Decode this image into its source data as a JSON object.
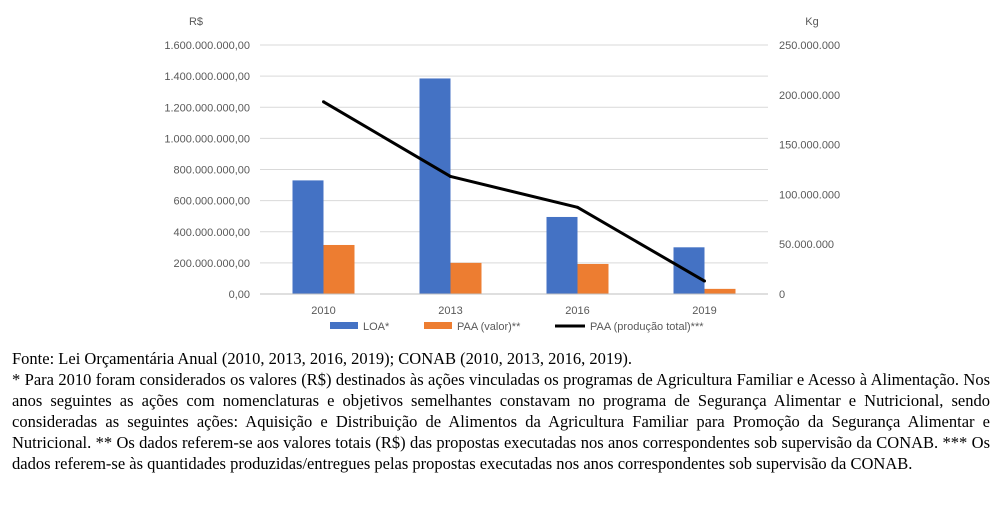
{
  "chart_data": {
    "type": "bar+line",
    "categories": [
      "2010",
      "2013",
      "2016",
      "2019"
    ],
    "y_left": {
      "unit_label": "R$",
      "range": [
        0,
        1600000000
      ],
      "tick_labels": [
        "0,00",
        "200.000.000,00",
        "400.000.000,00",
        "600.000.000,00",
        "800.000.000,00",
        "1.000.000.000,00",
        "1.200.000.000,00",
        "1.400.000.000,00",
        "1.600.000.000,00"
      ],
      "tick_values": [
        0,
        200000000,
        400000000,
        600000000,
        800000000,
        1000000000,
        1200000000,
        1400000000,
        1600000000
      ]
    },
    "y_right": {
      "unit_label": "Kg",
      "range": [
        0,
        250000000
      ],
      "tick_labels": [
        "0",
        "50.000.000",
        "100.000.000",
        "150.000.000",
        "200.000.000",
        "250.000.000"
      ],
      "tick_values": [
        0,
        50000000,
        100000000,
        150000000,
        200000000,
        250000000
      ]
    },
    "series": [
      {
        "name": "LOA*",
        "type": "bar",
        "axis": "left",
        "color": "#4472C4",
        "values": [
          730000000,
          1385000000,
          495000000,
          300000000
        ]
      },
      {
        "name": "PAA (valor)**",
        "type": "bar",
        "axis": "left",
        "color": "#ED7D31",
        "values": [
          315000000,
          200000000,
          193000000,
          33000000
        ]
      },
      {
        "name": "PAA (produção total)***",
        "type": "line",
        "axis": "right",
        "color": "#000000",
        "values": [
          193000000,
          118000000,
          87000000,
          13000000
        ]
      }
    ],
    "grid": true,
    "legend_position": "bottom"
  },
  "notes": {
    "source": "Fonte: Lei Orçamentária Anual (2010, 2013, 2016, 2019); CONAB (2010, 2013, 2016, 2019).",
    "footnote": "* Para 2010 foram considerados os valores (R$) destinados às ações vinculadas os programas de Agricultura Familiar e Acesso à Alimentação. Nos anos seguintes as ações com nomenclaturas e objetivos semelhantes constavam no programa de Segurança Alimentar e Nutricional, sendo consideradas as seguintes ações: Aquisição e Distribuição de Alimentos da Agricultura Familiar para Promoção da Segurança Alimentar e Nutricional. ** Os dados referem-se aos valores totais (R$) das propostas executadas nos anos correspondentes sob supervisão da CONAB. *** Os dados referem-se às quantidades produzidas/entregues pelas propostas executadas nos anos correspondentes sob supervisão da CONAB."
  }
}
